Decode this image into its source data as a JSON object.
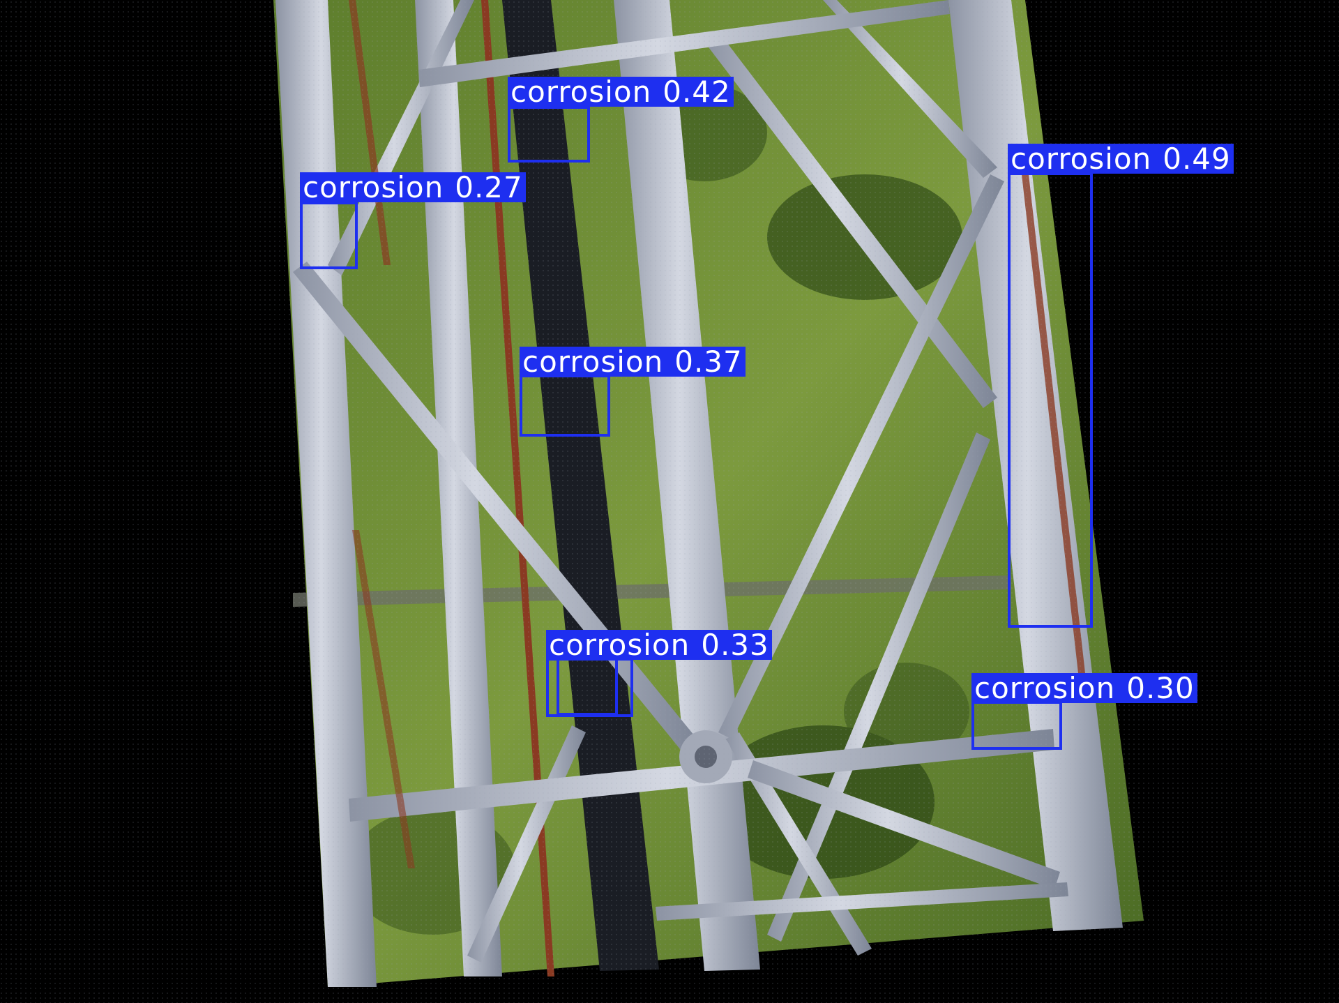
{
  "image": {
    "subject": "steel lattice tower structure photographed from above, grass field below",
    "colors": {
      "background": "#000000",
      "grass": "#6f8f3a",
      "grass_dark": "#3d5a1f",
      "steel": "#c7ccd8",
      "steel_shadow": "#7d8596",
      "rust": "#8a3a22",
      "cable": "#1a1d24",
      "detection": "#1e2ff0",
      "label_text": "#ffffff"
    }
  },
  "detections": [
    {
      "label": "corrosion",
      "confidence": "0.42"
    },
    {
      "label": "corrosion",
      "confidence": "0.49"
    },
    {
      "label": "corrosion",
      "confidence": "0.27"
    },
    {
      "label": "corrosion",
      "confidence": "0.37"
    },
    {
      "label": "corrosion",
      "confidence": "0.33"
    },
    {
      "label": "corrosion",
      "confidence": "0.30"
    }
  ]
}
